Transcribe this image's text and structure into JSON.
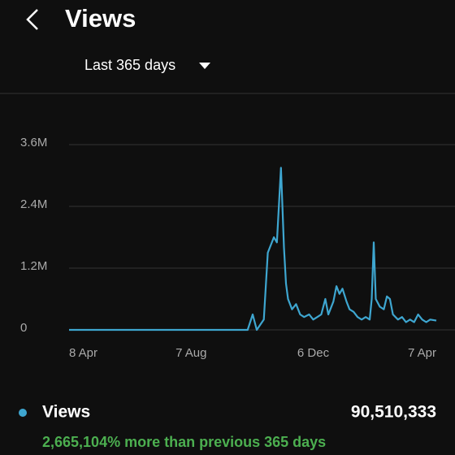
{
  "header": {
    "title": "Views"
  },
  "period": "Last 365 days",
  "chart_data": {
    "type": "line",
    "x": [
      0,
      60,
      120,
      177,
      182,
      186,
      193,
      197,
      203,
      206,
      210,
      213,
      215,
      217,
      221,
      225,
      229,
      233,
      238,
      242,
      246,
      250,
      254,
      257,
      262,
      265,
      268,
      271,
      275,
      278,
      282,
      286,
      290,
      294,
      298,
      300,
      302,
      304,
      308,
      312,
      315,
      318,
      321,
      326,
      330,
      334,
      338,
      342,
      346,
      350,
      354,
      358,
      364
    ],
    "series": [
      {
        "name": "Views",
        "color": "#3ea6d0",
        "values": [
          0,
          0,
          0,
          0,
          300000,
          0,
          200000,
          1500000,
          1800000,
          1700000,
          3150000,
          1600000,
          900000,
          600000,
          400000,
          500000,
          300000,
          250000,
          300000,
          200000,
          250000,
          300000,
          600000,
          300000,
          550000,
          850000,
          700000,
          800000,
          550000,
          400000,
          350000,
          250000,
          200000,
          250000,
          200000,
          600000,
          1700000,
          600000,
          450000,
          400000,
          650000,
          600000,
          300000,
          200000,
          250000,
          150000,
          200000,
          150000,
          300000,
          200000,
          150000,
          200000,
          180000
        ]
      }
    ],
    "xlim": [
      0,
      364
    ],
    "xticks": [
      {
        "value": 0,
        "label": "8 Apr"
      },
      {
        "value": 121,
        "label": "7 Aug"
      },
      {
        "value": 242,
        "label": "6 Dec"
      },
      {
        "value": 364,
        "label": "7 Apr"
      }
    ],
    "ylim": [
      0,
      3600000
    ],
    "yticks": [
      0,
      {
        "value": 1200000,
        "label": "1.2M"
      },
      {
        "value": 2400000,
        "label": "2.4M"
      },
      {
        "value": 3600000,
        "label": "3.6M"
      }
    ],
    "grid": true
  },
  "summary": {
    "total": "90,510,333",
    "change": "2,665,104% more than previous 365 days"
  }
}
